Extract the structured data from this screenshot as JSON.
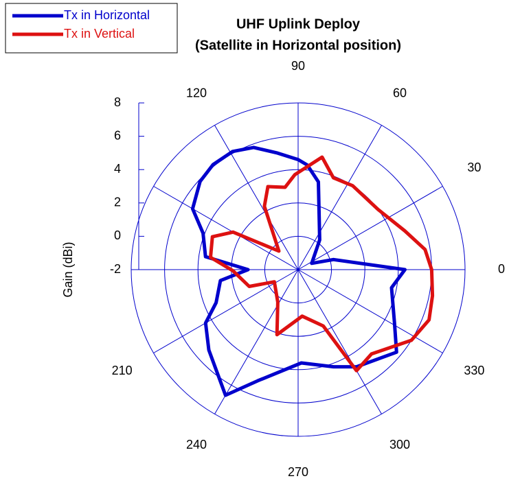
{
  "chart_data": {
    "type": "polar",
    "title": "UHF Uplink Deploy",
    "subtitle": "(Satellite in Horizontal position)",
    "ylabel": "Gain (dBi)",
    "ylim": [
      -2,
      8
    ],
    "yticks": [
      -2,
      0,
      2,
      4,
      6,
      8
    ],
    "thetaticks": [
      0,
      30,
      60,
      90,
      120,
      150,
      180,
      210,
      240,
      270,
      300,
      330
    ],
    "thetaticks_shown": [
      0,
      30,
      60,
      90,
      120,
      210,
      240,
      270,
      300,
      330
    ],
    "grid": true,
    "legend": "upper left",
    "series": [
      {
        "name": "Tx in Horizontal",
        "color": "#0000cc",
        "theta": [
          0,
          16,
          25,
          54,
          77,
          85,
          90,
          100,
          110,
          119,
          129,
          138,
          150,
          159,
          172,
          180,
          188,
          202,
          210,
          222,
          240,
          250,
          272,
          290,
          301,
          320,
          331,
          349
        ],
        "values": [
          4.4,
          0.2,
          -1.1,
          0.2,
          3.4,
          4.3,
          4.6,
          5.1,
          5.8,
          6.1,
          6.1,
          5.9,
          5.3,
          4.1,
          3.6,
          1.0,
          2.7,
          3.3,
          4.4,
          5.2,
          6.7,
          5.1,
          3.6,
          4.2,
          4.8,
          5.7,
          4.6,
          3.7
        ]
      },
      {
        "name": "Tx in Vertical",
        "color": "#dd1111",
        "theta": [
          0,
          9,
          20,
          37,
          57,
          69,
          78,
          92,
          99,
          110,
          118,
          136,
          150,
          159,
          172,
          181,
          199,
          207,
          238,
          252,
          275,
          294,
          298,
          300,
          311,
          328,
          339,
          349
        ],
        "values": [
          6.0,
          5.7,
          4.8,
          4.0,
          4.0,
          3.9,
          4.9,
          3.7,
          3.0,
          3.3,
          2.3,
          -0.4,
          2.5,
          3.5,
          3.3,
          1.9,
          1.1,
          -0.4,
          0.3,
          2.1,
          0.8,
          1.7,
          3.4,
          5.0,
          4.7,
          6.0,
          6.4,
          6.2
        ]
      }
    ]
  }
}
